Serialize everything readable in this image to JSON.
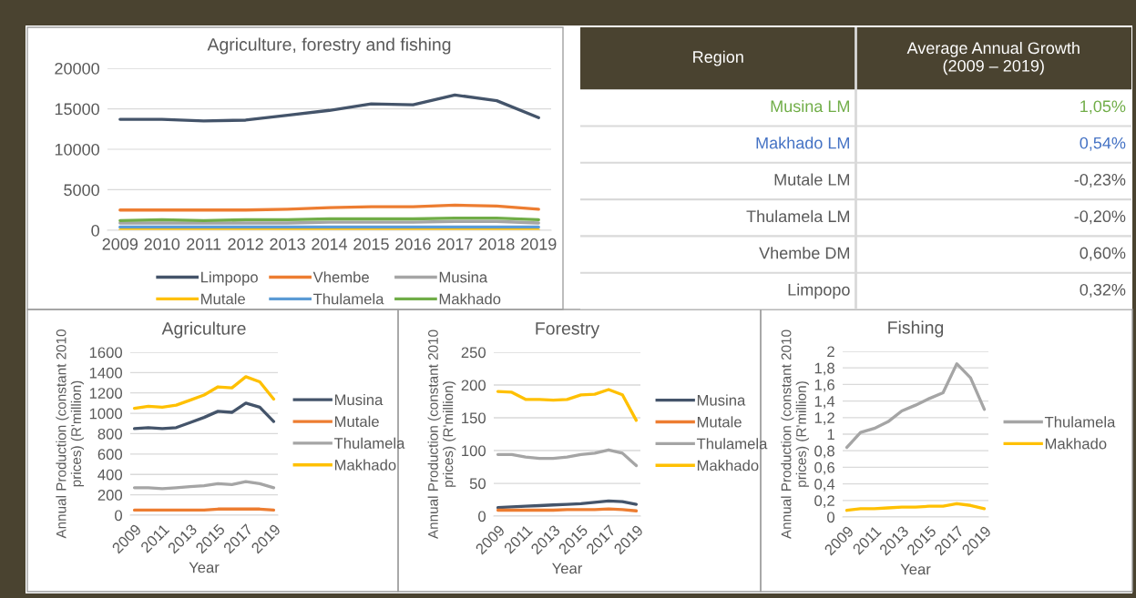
{
  "chart_data": [
    {
      "type": "line",
      "title": "Agriculture, forestry and fishing",
      "categories": [
        "2009",
        "2010",
        "2011",
        "2012",
        "2013",
        "2014",
        "2015",
        "2016",
        "2017",
        "2018",
        "2019"
      ],
      "ylim": [
        0,
        20000
      ],
      "yticks": [
        0,
        5000,
        10000,
        15000,
        20000
      ],
      "grid": "y",
      "legend": "bottom",
      "series": [
        {
          "name": "Limpopo",
          "color": "#44546a",
          "values": [
            13700,
            13700,
            13500,
            13600,
            14200,
            14800,
            15600,
            15500,
            16700,
            16000,
            13900
          ]
        },
        {
          "name": "Vhembe",
          "color": "#ed7d31",
          "values": [
            2500,
            2500,
            2500,
            2500,
            2600,
            2800,
            2900,
            2900,
            3100,
            3000,
            2600
          ]
        },
        {
          "name": "Musina",
          "color": "#a5a5a5",
          "values": [
            900,
            900,
            900,
            900,
            900,
            1000,
            1000,
            1000,
            1100,
            1100,
            900
          ]
        },
        {
          "name": "Mutale",
          "color": "#ffc000",
          "values": [
            50,
            50,
            50,
            50,
            50,
            50,
            50,
            50,
            50,
            50,
            50
          ]
        },
        {
          "name": "Thulamela",
          "color": "#5b9bd5",
          "values": [
            400,
            400,
            400,
            400,
            400,
            400,
            400,
            400,
            400,
            400,
            400
          ]
        },
        {
          "name": "Makhado",
          "color": "#70ad47",
          "values": [
            1200,
            1300,
            1200,
            1300,
            1300,
            1400,
            1400,
            1400,
            1500,
            1500,
            1300
          ]
        }
      ]
    },
    {
      "type": "other",
      "annotations": [
        "Region",
        "Average Annual Growth\n(2009 – 2019)"
      ],
      "categories": [
        "Musina LM",
        "Makhado LM",
        "Mutale LM",
        "Thulamela LM",
        "Vhembe DM",
        "Limpopo"
      ],
      "value_labels": [
        "1,05%",
        "0,54%",
        "-0,23%",
        "-0,20%",
        "0,60%",
        "0,32%"
      ],
      "colors": [
        "#70ad47",
        "#4472c4",
        "#595959",
        "#595959",
        "#595959",
        "#595959"
      ]
    },
    {
      "type": "line",
      "title": "Agriculture",
      "xlabel": "Year",
      "ylabel": "Annual Production (constant 2010\nprices) (R'million)",
      "categories": [
        "2009",
        null,
        "2011",
        null,
        "2013",
        null,
        "2015",
        null,
        "2017",
        null,
        "2019"
      ],
      "ylim": [
        0,
        1600
      ],
      "yticks": [
        0,
        200,
        400,
        600,
        800,
        1000,
        1200,
        1400,
        1600
      ],
      "grid": "y",
      "legend": "right",
      "series": [
        {
          "name": "Musina",
          "color": "#44546a",
          "values": [
            850,
            860,
            850,
            860,
            910,
            960,
            1020,
            1010,
            1100,
            1060,
            920
          ]
        },
        {
          "name": "Mutale",
          "color": "#ed7d31",
          "values": [
            50,
            50,
            50,
            50,
            50,
            50,
            60,
            60,
            60,
            60,
            50
          ]
        },
        {
          "name": "Thulamela",
          "color": "#a5a5a5",
          "values": [
            270,
            270,
            260,
            270,
            280,
            290,
            310,
            300,
            330,
            310,
            270
          ]
        },
        {
          "name": "Makhado",
          "color": "#ffc000",
          "values": [
            1050,
            1070,
            1060,
            1080,
            1130,
            1180,
            1260,
            1250,
            1360,
            1310,
            1140
          ]
        }
      ]
    },
    {
      "type": "line",
      "title": "Forestry",
      "xlabel": "Year",
      "ylabel": "Annual Production (constant 2010\nprices) (R'million)",
      "categories": [
        "2009",
        null,
        "2011",
        null,
        "2013",
        null,
        "2015",
        null,
        "2017",
        null,
        "2019"
      ],
      "ylim": [
        0,
        250
      ],
      "yticks": [
        0,
        50,
        100,
        150,
        200,
        250
      ],
      "grid": "y",
      "legend": "right",
      "series": [
        {
          "name": "Musina",
          "color": "#44546a",
          "values": [
            13,
            14,
            15,
            16,
            17,
            18,
            19,
            21,
            23,
            22,
            18
          ]
        },
        {
          "name": "Mutale",
          "color": "#ed7d31",
          "values": [
            9,
            9,
            9,
            9,
            9,
            10,
            10,
            10,
            11,
            10,
            8
          ]
        },
        {
          "name": "Thulamela",
          "color": "#a5a5a5",
          "values": [
            94,
            94,
            90,
            88,
            88,
            90,
            94,
            96,
            101,
            96,
            77
          ]
        },
        {
          "name": "Makhado",
          "color": "#ffc000",
          "values": [
            190,
            189,
            178,
            178,
            177,
            178,
            185,
            186,
            193,
            185,
            146
          ]
        }
      ]
    },
    {
      "type": "line",
      "title": "Fishing",
      "xlabel": "Year",
      "ylabel": "Annual Production (constant 2010\nprices) (R'million)",
      "categories": [
        "2009",
        null,
        "2011",
        null,
        "2013",
        null,
        "2015",
        null,
        "2017",
        null,
        "2019"
      ],
      "ylim": [
        0,
        2
      ],
      "yticks": [
        0,
        {
          "value": 0.2,
          "label": "0,2"
        },
        {
          "value": 0.4,
          "label": "0,4"
        },
        {
          "value": 0.6,
          "label": "0,6"
        },
        {
          "value": 0.8,
          "label": "0,8"
        },
        1,
        {
          "value": 1.2,
          "label": "1,2"
        },
        {
          "value": 1.4,
          "label": "1,4"
        },
        {
          "value": 1.6,
          "label": "1,6"
        },
        {
          "value": 1.8,
          "label": "1,8"
        },
        2
      ],
      "grid": "y",
      "legend": "right",
      "series": [
        {
          "name": "Thulamela",
          "color": "#a5a5a5",
          "values": [
            0.84,
            1.02,
            1.07,
            1.15,
            1.28,
            1.35,
            1.43,
            1.5,
            1.85,
            1.68,
            1.3
          ]
        },
        {
          "name": "Makhado",
          "color": "#ffc000",
          "values": [
            0.08,
            0.1,
            0.1,
            0.11,
            0.12,
            0.12,
            0.13,
            0.13,
            0.16,
            0.14,
            0.1
          ]
        }
      ]
    }
  ]
}
